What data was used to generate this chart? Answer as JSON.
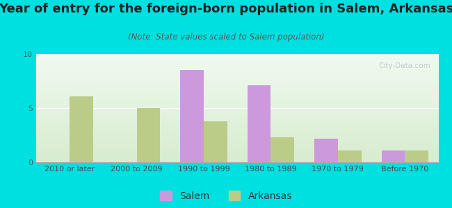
{
  "title": "Year of entry for the foreign-born population in Salem, Arkansas",
  "subtitle": "(Note: State values scaled to Salem population)",
  "categories": [
    "2010 or later",
    "2000 to 2009",
    "1990 to 1999",
    "1980 to 1989",
    "1970 to 1979",
    "Before 1970"
  ],
  "salem_values": [
    0,
    0,
    8.5,
    7.1,
    2.2,
    1.1
  ],
  "arkansas_values": [
    6.1,
    5.0,
    3.8,
    2.3,
    1.1,
    1.1
  ],
  "salem_color": "#cc99dd",
  "arkansas_color": "#bbcc88",
  "background_outer": "#00e0e0",
  "plot_bg_top": "#f5fff5",
  "plot_bg_bottom": "#e0eed8",
  "ylim": [
    0,
    10
  ],
  "yticks": [
    0,
    5,
    10
  ],
  "bar_width": 0.35,
  "title_fontsize": 13,
  "subtitle_fontsize": 8.5,
  "legend_fontsize": 10,
  "tick_fontsize": 8
}
